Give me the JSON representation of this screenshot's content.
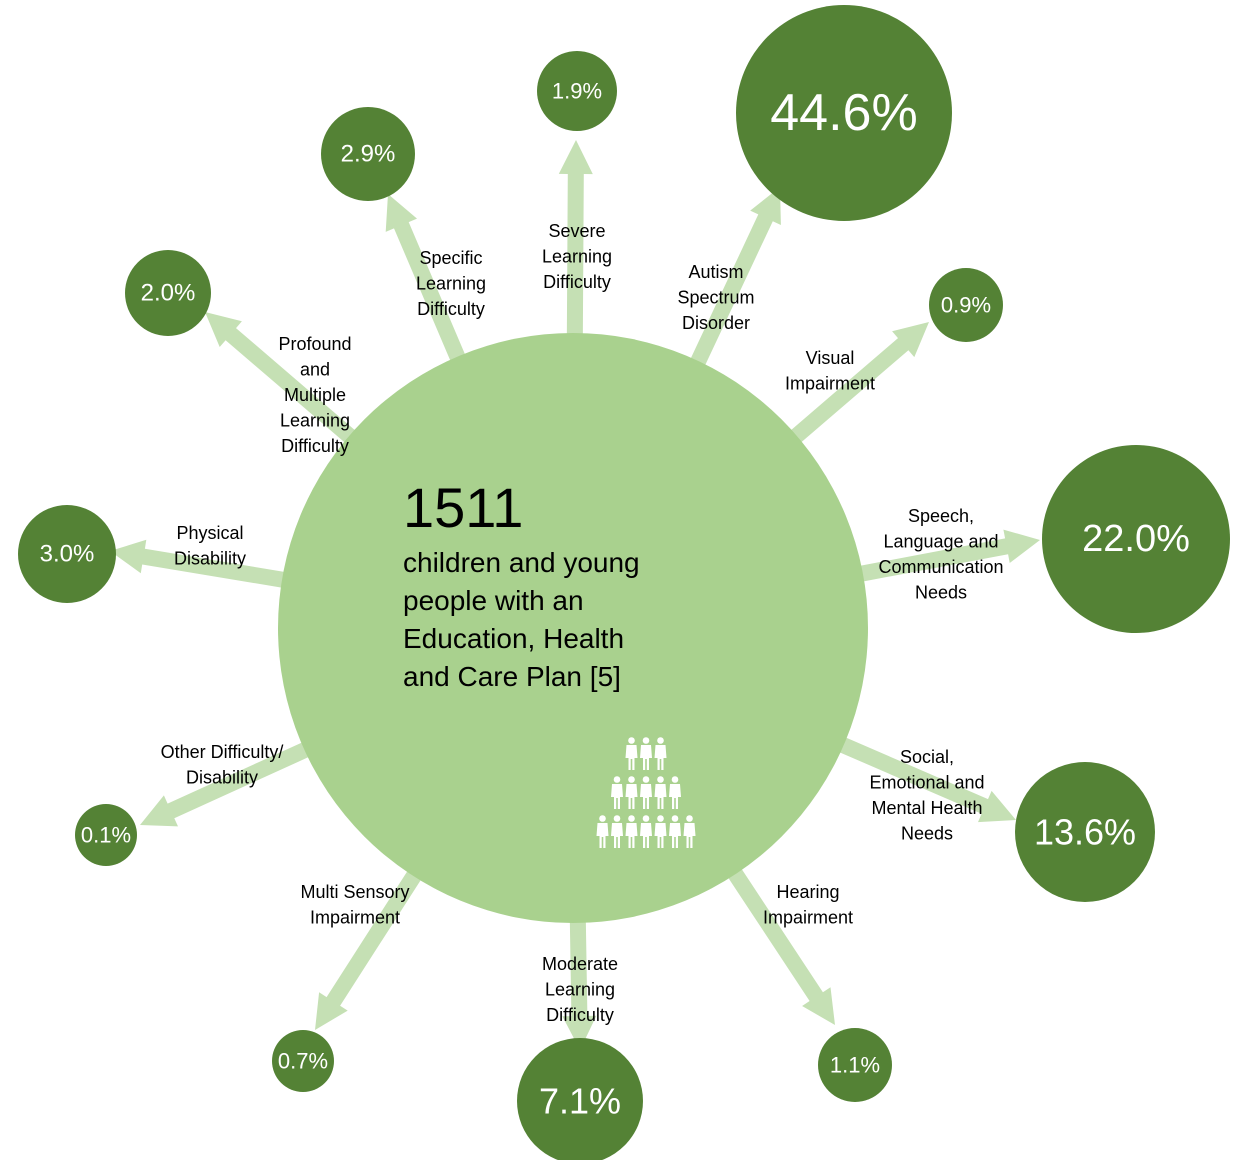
{
  "colors": {
    "center_fill": "#a9d18e",
    "outer_fill": "#548235",
    "arrow": "#c5e0b4",
    "icon": "#ffffff"
  },
  "center": {
    "number": "1511",
    "description_lines": [
      "children and young",
      "people with an",
      "Education, Health",
      "and Care Plan [5]"
    ],
    "icon": "people-group-icon"
  },
  "categories": [
    {
      "id": "autism",
      "label_lines": [
        "Autism",
        "Spectrum",
        "Disorder"
      ],
      "value": "44.6%"
    },
    {
      "id": "visual",
      "label_lines": [
        "Visual",
        "Impairment"
      ],
      "value": "0.9%"
    },
    {
      "id": "slcn",
      "label_lines": [
        "Speech,",
        "Language and",
        "Communication",
        "Needs"
      ],
      "value": "22.0%"
    },
    {
      "id": "semh",
      "label_lines": [
        "Social,",
        "Emotional and",
        "Mental Health",
        "Needs"
      ],
      "value": "13.6%"
    },
    {
      "id": "hearing",
      "label_lines": [
        "Hearing",
        "Impairment"
      ],
      "value": "1.1%"
    },
    {
      "id": "mld",
      "label_lines": [
        "Moderate",
        "Learning",
        "Difficulty"
      ],
      "value": "7.1%"
    },
    {
      "id": "msi",
      "label_lines": [
        "Multi Sensory",
        "Impairment"
      ],
      "value": "0.7%"
    },
    {
      "id": "other",
      "label_lines": [
        "Other Difficulty/",
        "Disability"
      ],
      "value": "0.1%"
    },
    {
      "id": "physical",
      "label_lines": [
        "Physical",
        "Disability"
      ],
      "value": "3.0%"
    },
    {
      "id": "pmld",
      "label_lines": [
        "Profound",
        "and",
        "Multiple",
        "Learning",
        "Difficulty"
      ],
      "value": "2.0%"
    },
    {
      "id": "spld",
      "label_lines": [
        "Specific",
        "Learning",
        "Difficulty"
      ],
      "value": "2.9%"
    },
    {
      "id": "sld",
      "label_lines": [
        "Severe",
        "Learning",
        "Difficulty"
      ],
      "value": "1.9%"
    }
  ]
}
